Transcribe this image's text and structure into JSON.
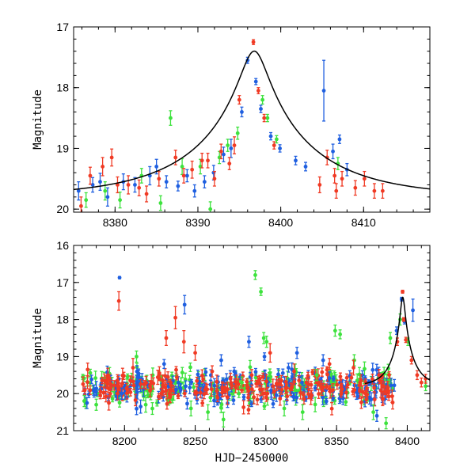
{
  "chart_data": [
    {
      "type": "scatter",
      "panel": "top",
      "xlabel": "",
      "ylabel": "Magnitude",
      "xlim": [
        8375,
        8418
      ],
      "ylim": [
        20.05,
        17.0
      ],
      "y_inverted": true,
      "xticks": [
        8380,
        8390,
        8400,
        8410
      ],
      "yticks": [
        17,
        18,
        19,
        20
      ],
      "grid": false,
      "colors": {
        "blue": "#1f5fe0",
        "green": "#3de23d",
        "red": "#f03a24",
        "model": "#000000"
      },
      "model_curve": {
        "t0": 8396.8,
        "u0": 0.11,
        "tE": 14.0,
        "base_mag": 19.8
      },
      "series": [
        {
          "color": "blue",
          "points": [
            [
              8375.6,
              19.7,
              0.15
            ],
            [
              8377.3,
              19.6,
              0.12
            ],
            [
              8378.2,
              19.55,
              0.14
            ],
            [
              8379.1,
              19.8,
              0.15
            ],
            [
              8381.0,
              19.55,
              0.13
            ],
            [
              8382.4,
              19.6,
              0.12
            ],
            [
              8384.2,
              19.45,
              0.15
            ],
            [
              8385.0,
              19.3,
              0.12
            ],
            [
              8386.2,
              19.55,
              0.1
            ],
            [
              8387.6,
              19.62,
              0.08
            ],
            [
              8388.7,
              19.45,
              0.1
            ],
            [
              8389.6,
              19.7,
              0.1
            ],
            [
              8390.8,
              19.55,
              0.1
            ],
            [
              8391.9,
              19.4,
              0.12
            ],
            [
              8393.1,
              19.1,
              0.12
            ],
            [
              8394.0,
              19.0,
              0.15
            ],
            [
              8395.3,
              18.4,
              0.08
            ],
            [
              8396.0,
              17.55,
              0.05
            ],
            [
              8397.0,
              17.9,
              0.05
            ],
            [
              8397.6,
              18.35,
              0.06
            ],
            [
              8398.8,
              18.8,
              0.06
            ],
            [
              8399.9,
              19.0,
              0.06
            ],
            [
              8401.8,
              19.2,
              0.07
            ],
            [
              8403.0,
              19.3,
              0.07
            ],
            [
              8405.2,
              18.05,
              0.5
            ],
            [
              8406.3,
              19.05,
              0.12
            ],
            [
              8407.1,
              18.85,
              0.07
            ],
            [
              8408.0,
              19.35,
              0.1
            ]
          ]
        },
        {
          "color": "green",
          "points": [
            [
              8376.5,
              19.85,
              0.12
            ],
            [
              8378.8,
              19.7,
              0.15
            ],
            [
              8380.6,
              19.85,
              0.13
            ],
            [
              8383.2,
              19.45,
              0.12
            ],
            [
              8385.5,
              19.9,
              0.12
            ],
            [
              8386.7,
              18.5,
              0.12
            ],
            [
              8388.1,
              19.3,
              0.13
            ],
            [
              8390.3,
              19.3,
              0.12
            ],
            [
              8391.5,
              20.0,
              0.12
            ],
            [
              8392.6,
              19.15,
              0.1
            ],
            [
              8393.6,
              18.95,
              0.1
            ],
            [
              8394.8,
              18.75,
              0.1
            ],
            [
              8397.8,
              18.2,
              0.07
            ],
            [
              8398.4,
              18.5,
              0.06
            ],
            [
              8399.5,
              18.85,
              0.06
            ],
            [
              8406.9,
              19.25,
              0.1
            ]
          ]
        },
        {
          "color": "red",
          "points": [
            [
              8375.9,
              19.95,
              0.15
            ],
            [
              8377.0,
              19.45,
              0.14
            ],
            [
              8378.5,
              19.3,
              0.15
            ],
            [
              8379.6,
              19.15,
              0.14
            ],
            [
              8380.3,
              19.6,
              0.13
            ],
            [
              8381.6,
              19.6,
              0.15
            ],
            [
              8382.9,
              19.65,
              0.13
            ],
            [
              8383.8,
              19.75,
              0.13
            ],
            [
              8385.3,
              19.5,
              0.12
            ],
            [
              8387.3,
              19.15,
              0.12
            ],
            [
              8388.3,
              19.45,
              0.12
            ],
            [
              8389.3,
              19.35,
              0.14
            ],
            [
              8390.5,
              19.2,
              0.12
            ],
            [
              8391.2,
              19.2,
              0.12
            ],
            [
              8392.0,
              19.5,
              0.12
            ],
            [
              8392.8,
              19.05,
              0.12
            ],
            [
              8393.8,
              19.25,
              0.1
            ],
            [
              8394.4,
              18.95,
              0.14
            ],
            [
              8395.0,
              18.2,
              0.07
            ],
            [
              8396.7,
              17.25,
              0.04
            ],
            [
              8397.3,
              18.05,
              0.05
            ],
            [
              8398.0,
              18.5,
              0.06
            ],
            [
              8399.2,
              18.95,
              0.06
            ],
            [
              8404.7,
              19.6,
              0.13
            ],
            [
              8405.6,
              19.15,
              0.12
            ],
            [
              8406.5,
              19.45,
              0.12
            ],
            [
              8407.4,
              19.5,
              0.12
            ],
            [
              8409.0,
              19.65,
              0.12
            ],
            [
              8410.1,
              19.5,
              0.12
            ],
            [
              8411.3,
              19.7,
              0.12
            ],
            [
              8412.3,
              19.7,
              0.12
            ],
            [
              8406.7,
              19.7,
              0.12
            ]
          ]
        }
      ]
    },
    {
      "type": "scatter",
      "panel": "bottom",
      "xlabel": "HJD−2450000",
      "ylabel": "Magnitude",
      "xlim": [
        8164,
        8416
      ],
      "ylim": [
        21.0,
        16.0
      ],
      "y_inverted": true,
      "xticks": [
        8200,
        8250,
        8300,
        8350,
        8400
      ],
      "yticks": [
        16,
        17,
        18,
        19,
        20,
        21
      ],
      "grid": false,
      "colors": {
        "blue": "#1f5fe0",
        "green": "#3de23d",
        "red": "#f03a24",
        "model": "#000000"
      },
      "model_curve": {
        "t0": 8396.8,
        "u0": 0.11,
        "tE": 14.0,
        "base_mag": 19.8,
        "x_from": 8370
      },
      "dense_band": {
        "x_range": [
          8170,
          8392
        ],
        "center_mag": 19.82,
        "scatter_mag": 0.22,
        "err_mag": 0.13,
        "count_per_color": 210
      },
      "series": [
        {
          "color": "blue",
          "points": [
            [
              8196.5,
              16.87,
              0.03
            ],
            [
              8228.0,
              19.2,
              0.12
            ],
            [
              8236.5,
              19.9,
              0.1
            ],
            [
              8242.5,
              17.6,
              0.25
            ],
            [
              8268.4,
              19.1,
              0.15
            ],
            [
              8288.0,
              18.6,
              0.15
            ],
            [
              8299.0,
              19.0,
              0.1
            ],
            [
              8316.0,
              19.3,
              0.12
            ],
            [
              8322.0,
              18.9,
              0.15
            ],
            [
              8340.5,
              19.1,
              0.15
            ],
            [
              8378.5,
              20.6,
              0.15
            ],
            [
              8392.5,
              18.3,
              0.1
            ],
            [
              8396.0,
              17.45,
              0.05
            ],
            [
              8398.0,
              18.05,
              0.07
            ],
            [
              8404.0,
              17.75,
              0.3
            ],
            [
              8198.0,
              20.0,
              0.15
            ]
          ]
        },
        {
          "color": "green",
          "points": [
            [
              8171.5,
              20.2,
              0.15
            ],
            [
              8180.0,
              20.3,
              0.15
            ],
            [
              8208.5,
              19.0,
              0.15
            ],
            [
              8215.0,
              20.3,
              0.2
            ],
            [
              8247.0,
              20.4,
              0.2
            ],
            [
              8259.0,
              20.5,
              0.2
            ],
            [
              8270.0,
              20.7,
              0.2
            ],
            [
              8283.0,
              19.7,
              0.15
            ],
            [
              8292.5,
              16.8,
              0.12
            ],
            [
              8296.5,
              17.25,
              0.1
            ],
            [
              8298.5,
              18.5,
              0.15
            ],
            [
              8300.5,
              18.6,
              0.15
            ],
            [
              8313.0,
              20.4,
              0.2
            ],
            [
              8326.0,
              20.5,
              0.2
            ],
            [
              8336.0,
              19.5,
              0.15
            ],
            [
              8349.0,
              18.3,
              0.15
            ],
            [
              8352.5,
              18.4,
              0.12
            ],
            [
              8362.5,
              19.1,
              0.15
            ],
            [
              8376.0,
              20.5,
              0.2
            ],
            [
              8385.0,
              20.8,
              0.15
            ],
            [
              8388.0,
              18.5,
              0.15
            ],
            [
              8395.0,
              18.0,
              0.15
            ],
            [
              8400.5,
              18.6,
              0.1
            ],
            [
              8413.0,
              19.8,
              0.12
            ]
          ]
        },
        {
          "color": "red",
          "points": [
            [
              8196.0,
              17.5,
              0.25
            ],
            [
              8206.0,
              19.3,
              0.25
            ],
            [
              8218.0,
              19.8,
              0.15
            ],
            [
              8229.5,
              18.5,
              0.2
            ],
            [
              8236.0,
              17.95,
              0.3
            ],
            [
              8242.0,
              18.6,
              0.3
            ],
            [
              8250.0,
              18.9,
              0.2
            ],
            [
              8262.0,
              19.4,
              0.15
            ],
            [
              8275.0,
              19.6,
              0.15
            ],
            [
              8290.0,
              19.5,
              0.15
            ],
            [
              8303.0,
              18.9,
              0.25
            ],
            [
              8320.0,
              19.4,
              0.2
            ],
            [
              8345.0,
              19.2,
              0.15
            ],
            [
              8362.0,
              19.3,
              0.2
            ],
            [
              8380.0,
              19.5,
              0.15
            ],
            [
              8393.0,
              18.6,
              0.1
            ],
            [
              8396.7,
              17.25,
              0.04
            ],
            [
              8397.5,
              18.0,
              0.05
            ],
            [
              8399.0,
              18.55,
              0.07
            ],
            [
              8403.0,
              19.1,
              0.1
            ],
            [
              8407.0,
              19.5,
              0.12
            ],
            [
              8410.0,
              19.7,
              0.12
            ],
            [
              8413.0,
              19.6,
              0.12
            ]
          ]
        }
      ]
    }
  ]
}
